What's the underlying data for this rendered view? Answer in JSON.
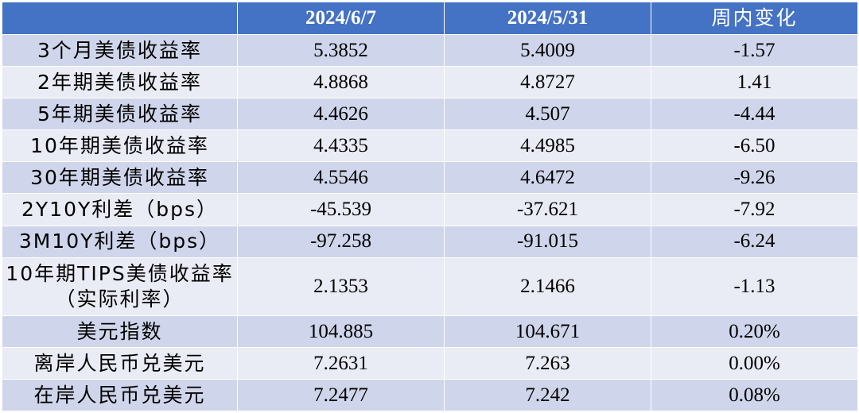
{
  "table": {
    "headers": [
      "",
      "2024/6/7",
      "2024/5/31",
      "周内变化"
    ],
    "rows": [
      {
        "label": "3个月美债收益率",
        "v1": "5.3852",
        "v2": "5.4009",
        "chg": "-1.57"
      },
      {
        "label": "2年期美债收益率",
        "v1": "4.8868",
        "v2": "4.8727",
        "chg": "1.41"
      },
      {
        "label": "5年期美债收益率",
        "v1": "4.4626",
        "v2": "4.507",
        "chg": "-4.44"
      },
      {
        "label": "10年期美债收益率",
        "v1": "4.4335",
        "v2": "4.4985",
        "chg": "-6.50"
      },
      {
        "label": "30年期美债收益率",
        "v1": "4.5546",
        "v2": "4.6472",
        "chg": "-9.26"
      },
      {
        "label": "2Y10Y利差（bps）",
        "v1": "-45.539",
        "v2": "-37.621",
        "chg": "-7.92"
      },
      {
        "label": "3M10Y利差（bps）",
        "v1": "-97.258",
        "v2": "-91.015",
        "chg": "-6.24"
      },
      {
        "label": "10年期TIPS美债收益率（实际利率）",
        "v1": "2.1353",
        "v2": "2.1466",
        "chg": "-1.13"
      },
      {
        "label": "美元指数",
        "v1": "104.885",
        "v2": "104.671",
        "chg": "0.20%"
      },
      {
        "label": "离岸人民币兑美元",
        "v1": "7.2631",
        "v2": "7.263",
        "chg": "0.00%"
      },
      {
        "label": "在岸人民币兑美元",
        "v1": "7.2477",
        "v2": "7.242",
        "chg": "0.08%"
      }
    ]
  },
  "colors": {
    "header_bg": "#4472c4",
    "header_text": "#ffffff",
    "row_odd_bg": "#cfd5ea",
    "row_even_bg": "#e9ebf5"
  }
}
